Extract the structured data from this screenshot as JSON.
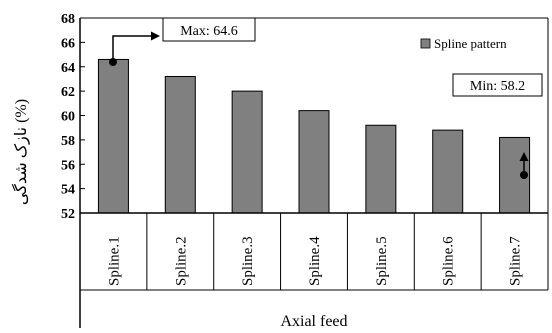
{
  "chart_data": {
    "type": "bar",
    "categories": [
      "Spline.1",
      "Spline.2",
      "Spline.3",
      "Spline.4",
      "Spline.5",
      "Spline.6",
      "Spline.7"
    ],
    "series": [
      {
        "name": "Spline pattern",
        "values": [
          64.6,
          63.2,
          62.0,
          60.4,
          59.2,
          58.8,
          58.2
        ]
      }
    ],
    "xlabel": "Axial feed",
    "ylabel": "نازک شدگی (%)",
    "ylim": [
      52,
      68
    ],
    "yticks": [
      52,
      54,
      56,
      58,
      60,
      62,
      64,
      66,
      68
    ],
    "grid": false,
    "legend": "top-right",
    "annotations": {
      "max": "Max: 64.6",
      "min": "Min: 58.2"
    },
    "colors": {
      "bar": "#808080",
      "axis": "#000000"
    }
  }
}
